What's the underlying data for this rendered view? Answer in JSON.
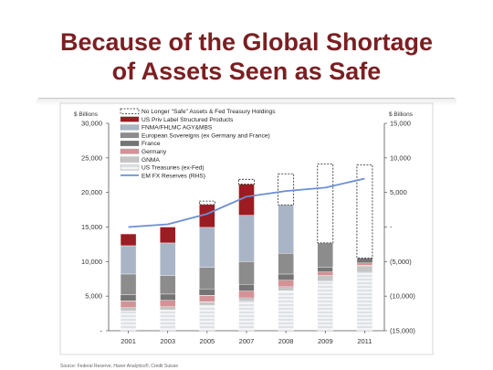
{
  "slide": {
    "title_line1": "Because of the Global Shortage",
    "title_line2": "of Assets Seen as Safe",
    "source": "Source: Federal Reserve, Haver Analytics®, Credit Suisse"
  },
  "chart_data": {
    "type": "bar",
    "stacked": true,
    "left_unit_label": "$ Billions",
    "right_unit_label": "$ Billions",
    "categories": [
      "2001",
      "2003",
      "2005",
      "2007",
      "2008",
      "2009",
      "2011"
    ],
    "left_axis": {
      "ylim": [
        0,
        30000
      ],
      "ticks": [
        0,
        5000,
        10000,
        15000,
        20000,
        25000,
        30000
      ],
      "tick_labels": [
        "-",
        "5,000",
        "10,000",
        "15,000",
        "20,000",
        "25,000",
        "30,000"
      ]
    },
    "right_axis": {
      "ylim": [
        -15000,
        15000
      ],
      "ticks": [
        -15000,
        -10000,
        -5000,
        0,
        5000,
        10000,
        15000
      ],
      "tick_labels": [
        "(15,000)",
        "(10,000)",
        "(5,000)",
        "-",
        "5,000",
        "10,000",
        "15,000"
      ]
    },
    "grid": false,
    "legend_position": "top-left",
    "series": [
      {
        "name": "US Treasuries (ex-Fed)",
        "color": "#e8ebee",
        "pattern": "light-hatch",
        "values": [
          2800,
          3000,
          3700,
          4300,
          5800,
          7200,
          8500
        ]
      },
      {
        "name": "GNMA",
        "color": "#d4d4d4",
        "pattern": "stripe",
        "values": [
          600,
          500,
          450,
          500,
          600,
          800,
          900
        ]
      },
      {
        "name": "Germany",
        "color": "#d98b8f",
        "pattern": "stripe",
        "values": [
          900,
          900,
          950,
          950,
          900,
          500,
          400
        ]
      },
      {
        "name": "France",
        "color": "#3a3a3a",
        "pattern": "vertical-stripe",
        "values": [
          900,
          900,
          950,
          950,
          900,
          700,
          700
        ]
      },
      {
        "name": "European Sovereigns (ex Germany and France)",
        "color": "#8c8c8c",
        "pattern": "solid",
        "values": [
          3000,
          2700,
          3100,
          3300,
          3000,
          3500,
          0
        ]
      },
      {
        "name": "FNMA/FHLMC AGY&MBS",
        "color": "#a9b5c6",
        "pattern": "solid",
        "values": [
          4100,
          4700,
          5800,
          6700,
          7000,
          0,
          0
        ]
      },
      {
        "name": "US Priv Label Structured Products",
        "color": "#9b1c22",
        "pattern": "solid",
        "values": [
          1700,
          2300,
          3300,
          4500,
          0,
          0,
          0
        ]
      },
      {
        "name": "No Longer \"Safe\" Assets & Fed Treasury Holdings",
        "color": "#ffffff",
        "pattern": "dashed-outline",
        "values": [
          0,
          0,
          500,
          700,
          4500,
          11400,
          13500
        ]
      }
    ],
    "line_series": {
      "name": "EM FX Reserves (RHS)",
      "axis": "right",
      "color": "#6b8fd4",
      "values": [
        0,
        400,
        1900,
        4400,
        5200,
        5700,
        7000
      ]
    }
  }
}
